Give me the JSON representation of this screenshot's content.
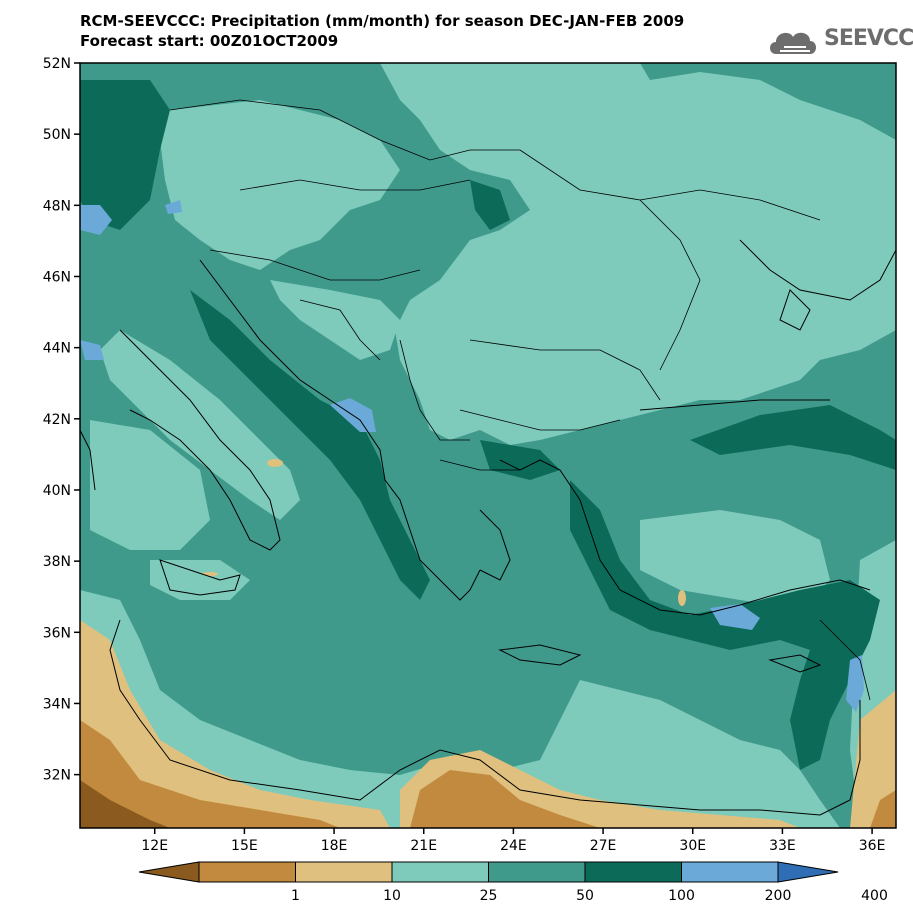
{
  "header": {
    "title_line1": "RCM-SEEVCCC: Precipitation (mm/month) for season DEC-JAN-FEB 2009",
    "title_line2": "Forecast start: 00Z01OCT2009"
  },
  "logo": {
    "text": "SEEVCCC",
    "icon": "cloud-icon"
  },
  "map": {
    "lat_range": [
      30.5,
      52
    ],
    "lon_range": [
      9.5,
      36.8
    ],
    "lat_ticks": [
      "52N",
      "50N",
      "48N",
      "46N",
      "44N",
      "42N",
      "40N",
      "38N",
      "36N",
      "34N",
      "32N"
    ],
    "lon_ticks": [
      "12E",
      "15E",
      "18E",
      "21E",
      "24E",
      "27E",
      "30E",
      "33E",
      "36E"
    ]
  },
  "colorbar": {
    "colors": [
      "#8a5a1e",
      "#c28a3e",
      "#e0c07e",
      "#7ecbbb",
      "#3f9a8c",
      "#0c6b58",
      "#6aa9d8",
      "#2f6eb4"
    ],
    "labels": [
      "1",
      "10",
      "25",
      "50",
      "100",
      "200",
      "400"
    ]
  }
}
